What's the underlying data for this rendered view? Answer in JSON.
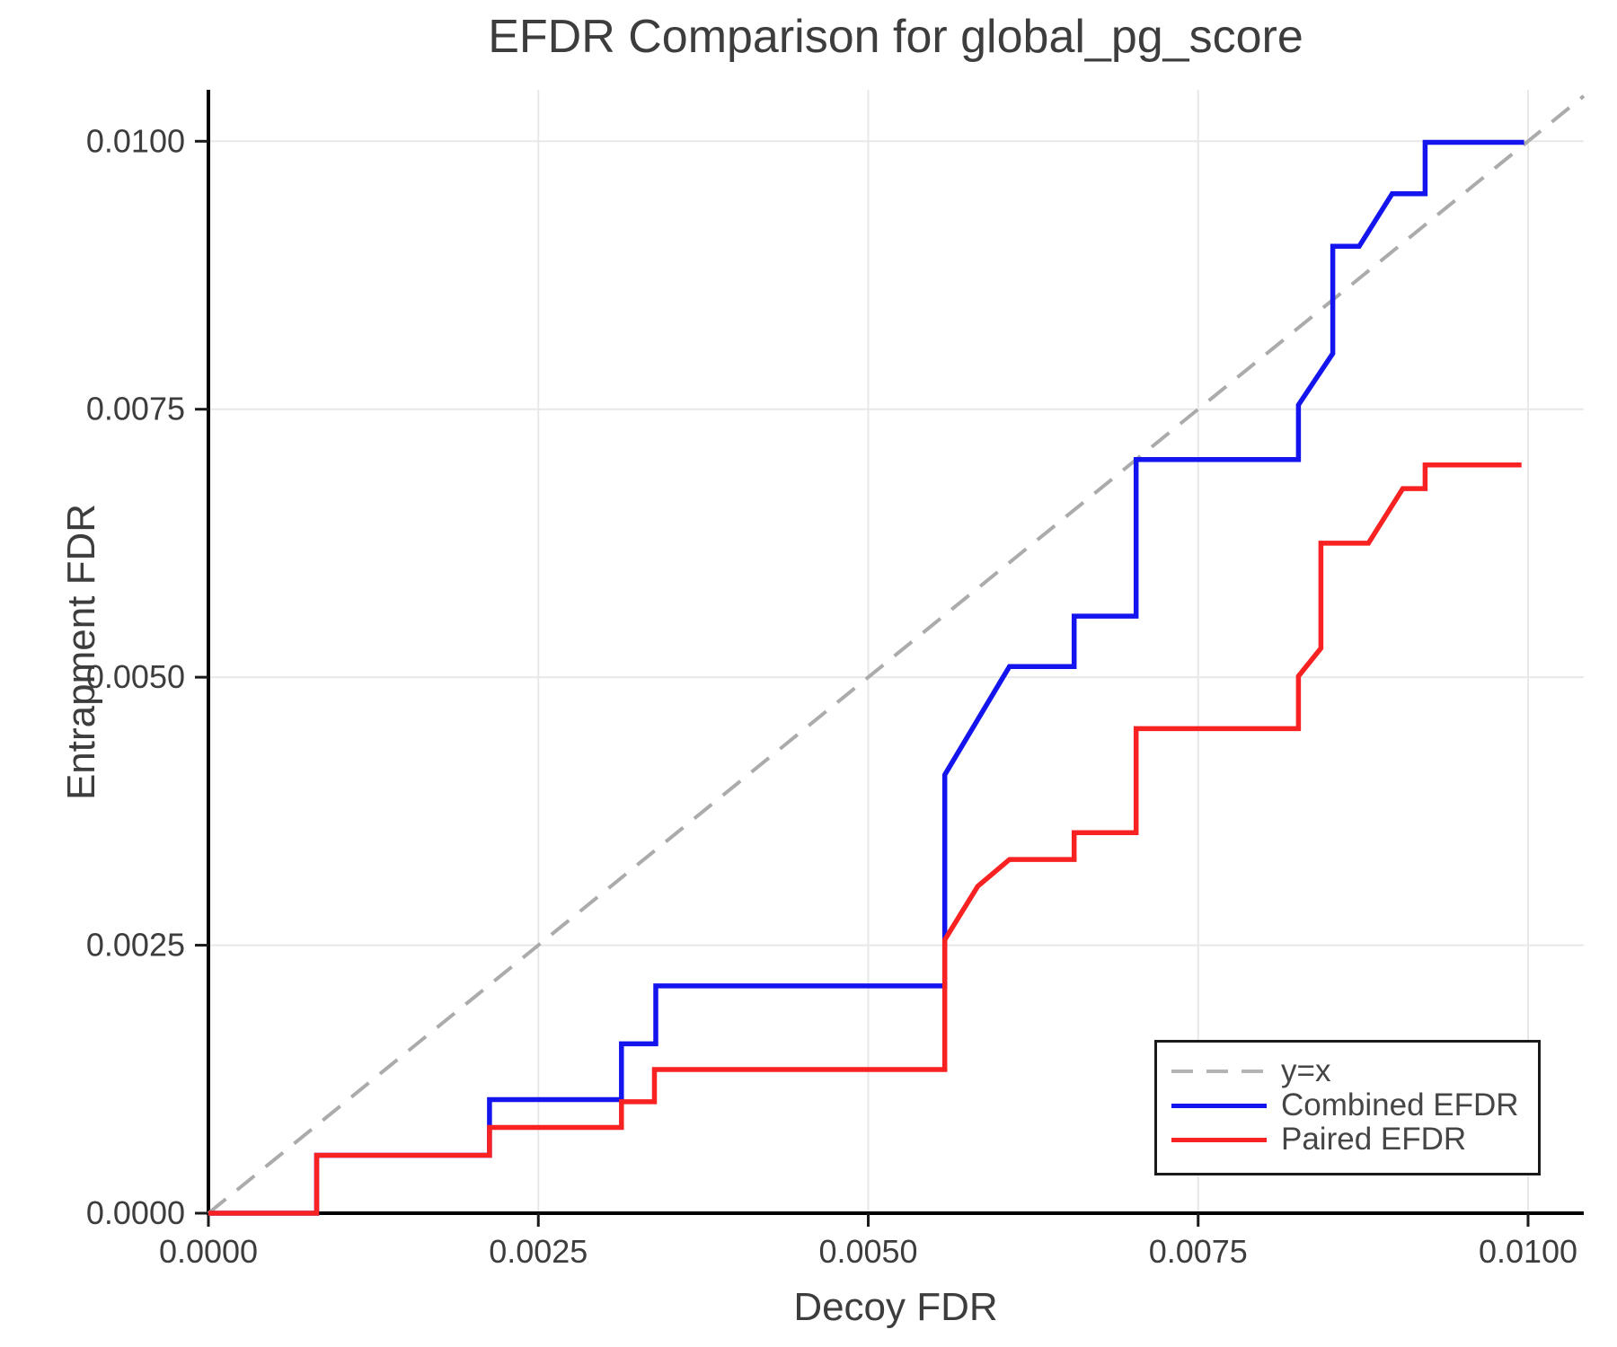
{
  "title": "EFDR Comparison for global_pg_score",
  "legend": {
    "entries": [
      {
        "label": "y=x"
      },
      {
        "label": "Combined EFDR"
      },
      {
        "label": "Paired EFDR"
      }
    ]
  },
  "colors": {
    "combined": "#1414ee",
    "paired": "#f82222",
    "identity": "#ababab",
    "grid": "#e8e8e8",
    "spine": "#000000",
    "tick_mark": "#1a1a1a",
    "text": "#3d3d3d"
  },
  "chart_data": {
    "type": "line",
    "title": "EFDR Comparison for global_pg_score",
    "xlabel": "Decoy FDR",
    "ylabel": "Entrapment FDR",
    "xlim": [
      0,
      0.010422
    ],
    "ylim": [
      0,
      0.01048
    ],
    "grid": true,
    "legend_position": "lower right",
    "x_ticks": {
      "values": [
        0,
        0.0025,
        0.005,
        0.0075,
        0.01
      ],
      "labels": [
        "0.0000",
        "0.0025",
        "0.0050",
        "0.0075",
        "0.0100"
      ]
    },
    "y_ticks": {
      "values": [
        0,
        0.0025,
        0.005,
        0.0075,
        0.01
      ],
      "labels": [
        "0.0000",
        "0.0025",
        "0.0050",
        "0.0075",
        "0.0100"
      ]
    },
    "series": [
      {
        "name": "y=x",
        "color": "#ababab",
        "dash": [
          25,
          16
        ],
        "width": 4,
        "points": [
          [
            0,
            0
          ],
          [
            0.010422,
            0.010422
          ]
        ]
      },
      {
        "name": "Combined EFDR",
        "color": "#1414ee",
        "dash": null,
        "width": 5.5,
        "points": [
          [
            0.0,
            0.0
          ],
          [
            0.00082,
            0.0
          ],
          [
            0.00082,
            0.00054
          ],
          [
            0.00213,
            0.00054
          ],
          [
            0.00213,
            0.00106
          ],
          [
            0.00313,
            0.00106
          ],
          [
            0.00313,
            0.00158
          ],
          [
            0.00339,
            0.00158
          ],
          [
            0.00339,
            0.00212
          ],
          [
            0.00558,
            0.00212
          ],
          [
            0.00558,
            0.00409
          ],
          [
            0.00607,
            0.0051
          ],
          [
            0.00656,
            0.0051
          ],
          [
            0.00656,
            0.00557
          ],
          [
            0.00703,
            0.00557
          ],
          [
            0.00703,
            0.00703
          ],
          [
            0.00826,
            0.00703
          ],
          [
            0.00826,
            0.00754
          ],
          [
            0.00852,
            0.00802
          ],
          [
            0.00852,
            0.00902
          ],
          [
            0.00872,
            0.00902
          ],
          [
            0.00897,
            0.00951
          ],
          [
            0.00922,
            0.00951
          ],
          [
            0.00922,
            0.00999
          ],
          [
            0.00997,
            0.00999
          ]
        ]
      },
      {
        "name": "Paired EFDR",
        "color": "#f82222",
        "dash": null,
        "width": 5.5,
        "points": [
          [
            0.0,
            0.0
          ],
          [
            0.00082,
            0.0
          ],
          [
            0.00082,
            0.00054
          ],
          [
            0.00213,
            0.00054
          ],
          [
            0.00213,
            0.0008
          ],
          [
            0.00313,
            0.0008
          ],
          [
            0.00313,
            0.00104
          ],
          [
            0.00338,
            0.00104
          ],
          [
            0.00338,
            0.00134
          ],
          [
            0.00558,
            0.00134
          ],
          [
            0.00558,
            0.00255
          ],
          [
            0.00583,
            0.00305
          ],
          [
            0.00607,
            0.0033
          ],
          [
            0.00656,
            0.0033
          ],
          [
            0.00656,
            0.00355
          ],
          [
            0.00703,
            0.00355
          ],
          [
            0.00703,
            0.00452
          ],
          [
            0.00826,
            0.00452
          ],
          [
            0.00826,
            0.00501
          ],
          [
            0.00843,
            0.00527
          ],
          [
            0.00843,
            0.00625
          ],
          [
            0.00879,
            0.00625
          ],
          [
            0.00905,
            0.00676
          ],
          [
            0.00922,
            0.00676
          ],
          [
            0.00922,
            0.00698
          ],
          [
            0.00995,
            0.00698
          ]
        ]
      }
    ]
  }
}
